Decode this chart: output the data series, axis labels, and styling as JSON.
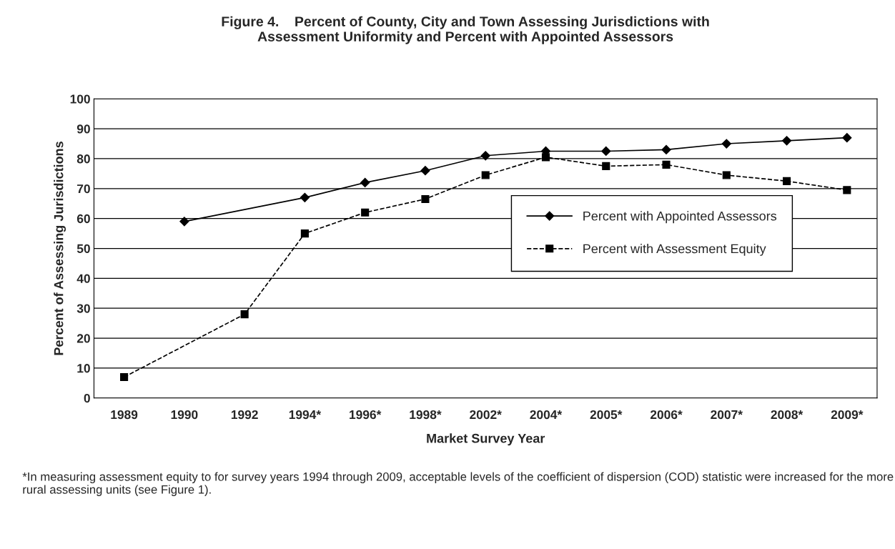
{
  "chart_data": {
    "type": "line",
    "title": "Figure 4.    Percent of County, City and Town Assessing Jurisdictions with\nAssessment Uniformity and Percent with Appointed Assessors",
    "xlabel": "Market Survey Year",
    "ylabel": "Percent of Assessing Jurisdictions",
    "categories": [
      "1989",
      "1990",
      "1992",
      "1994*",
      "1996*",
      "1998*",
      "2002*",
      "2004*",
      "2005*",
      "2006*",
      "2007*",
      "2008*",
      "2009*"
    ],
    "series": [
      {
        "name": "Percent with Appointed Assessors",
        "color": "#000000",
        "marker": "diamond",
        "line_style": "solid",
        "values": [
          null,
          59,
          null,
          67,
          72,
          76,
          81,
          82.5,
          82.5,
          83,
          85,
          86,
          87
        ]
      },
      {
        "name": "Percent with Assessment Equity",
        "color": "#000000",
        "marker": "square",
        "line_style": "dashed",
        "values": [
          7,
          null,
          28,
          55,
          62,
          66.5,
          74.5,
          80.5,
          77.5,
          78,
          74.5,
          72.5,
          69.5
        ]
      }
    ],
    "ylim": [
      0,
      100
    ],
    "yticks": [
      0,
      10,
      20,
      30,
      40,
      50,
      60,
      70,
      80,
      90,
      100
    ],
    "grid": "y",
    "legend": "right",
    "annotations": [
      "*In measuring assessment equity to for survey years 1994 through 2009, acceptable levels of the coefficient of dispersion (COD) statistic were increased for the more rural assessing units (see Figure 1)."
    ]
  }
}
